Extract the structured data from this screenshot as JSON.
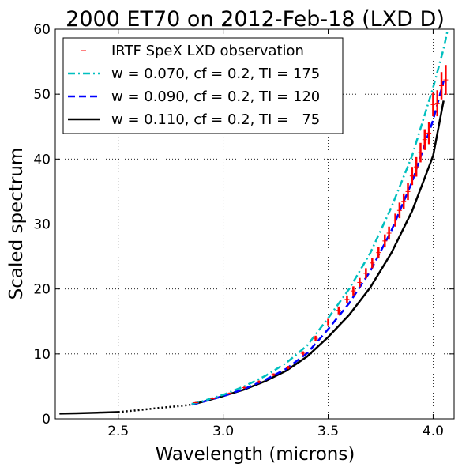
{
  "chart_data": {
    "type": "line",
    "title": "2000 ET70 on 2012-Feb-18 (LXD D)",
    "xlabel": "Wavelength (microns)",
    "ylabel": "Scaled spectrum",
    "xlim": [
      2.2,
      4.1
    ],
    "ylim": [
      0,
      60
    ],
    "xticks": [
      2.5,
      3.0,
      3.5,
      4.0
    ],
    "xtick_labels": [
      "2.5",
      "3.0",
      "3.5",
      "4.0"
    ],
    "yticks": [
      0,
      10,
      20,
      30,
      40,
      50,
      60
    ],
    "ytick_labels": [
      "0",
      "10",
      "20",
      "30",
      "40",
      "50",
      "60"
    ],
    "grid": true,
    "legend_position": "top-left",
    "observation": {
      "name": "IRTF SpeX LXD observation",
      "color": "#ff0000",
      "x": [
        2.87,
        2.95,
        3.03,
        3.1,
        3.17,
        3.24,
        3.31,
        3.38,
        3.44,
        3.5,
        3.55,
        3.59,
        3.62,
        3.65,
        3.68,
        3.71,
        3.74,
        3.77,
        3.79,
        3.82,
        3.84,
        3.86,
        3.88,
        3.9,
        3.92,
        3.94,
        3.96,
        3.98,
        4.0,
        4.02,
        4.04,
        4.06
      ],
      "y": [
        2.5,
        3.1,
        3.9,
        4.8,
        5.7,
        6.8,
        7.9,
        10.1,
        12.4,
        14.9,
        16.7,
        18.4,
        19.7,
        21.0,
        22.4,
        24.0,
        25.6,
        27.4,
        28.6,
        30.6,
        32.1,
        33.5,
        35.0,
        37.4,
        38.8,
        41.0,
        43.0,
        44.0,
        48.4,
        48.6,
        51.3,
        52.2
      ],
      "err": [
        0.1,
        0.1,
        0.15,
        0.15,
        0.2,
        0.2,
        0.25,
        0.3,
        0.4,
        0.5,
        0.6,
        0.6,
        0.7,
        0.7,
        0.8,
        0.8,
        0.9,
        1.0,
        1.0,
        1.0,
        1.2,
        1.2,
        1.3,
        1.4,
        1.5,
        1.5,
        1.6,
        1.7,
        1.8,
        2.0,
        2.1,
        2.3
      ]
    },
    "series": [
      {
        "name": "w = 0.070, cf = 0.2, TI = 175",
        "color": "#00bfbf",
        "style": "dashdot",
        "x": [
          2.85,
          2.9,
          3.0,
          3.1,
          3.2,
          3.3,
          3.4,
          3.5,
          3.6,
          3.7,
          3.8,
          3.9,
          4.0,
          4.05,
          4.07
        ],
        "y": [
          2.3,
          2.7,
          3.7,
          5.0,
          6.6,
          8.6,
          11.3,
          15.5,
          20.0,
          25.5,
          32.5,
          40.5,
          51.0,
          57.0,
          60.0
        ]
      },
      {
        "name": "w = 0.090, cf = 0.2, TI = 120",
        "color": "#0000ff",
        "style": "dashed",
        "x": [
          2.85,
          2.9,
          3.0,
          3.1,
          3.2,
          3.3,
          3.4,
          3.5,
          3.6,
          3.7,
          3.8,
          3.9,
          4.0,
          4.05
        ],
        "y": [
          2.2,
          2.6,
          3.5,
          4.6,
          6.0,
          7.7,
          10.1,
          13.8,
          17.8,
          22.7,
          28.9,
          36.5,
          46.0,
          52.0
        ]
      },
      {
        "name": "w = 0.110, cf = 0.2, TI =   75",
        "color": "#000000",
        "style": "solid",
        "x": [
          2.85,
          2.9,
          3.0,
          3.1,
          3.2,
          3.3,
          3.4,
          3.5,
          3.6,
          3.7,
          3.8,
          3.9,
          4.0,
          4.05
        ],
        "y": [
          2.2,
          2.6,
          3.5,
          4.5,
          5.8,
          7.4,
          9.6,
          12.6,
          16.0,
          20.2,
          25.5,
          32.0,
          40.5,
          49.0
        ]
      }
    ],
    "extrapolation": {
      "color": "#000000",
      "solid_x": [
        2.22,
        2.3,
        2.4,
        2.5
      ],
      "solid_y": [
        0.8,
        0.85,
        0.95,
        1.05
      ],
      "dotted_x": [
        2.5,
        2.6,
        2.7,
        2.8,
        2.85
      ],
      "dotted_y": [
        1.05,
        1.35,
        1.7,
        2.0,
        2.2
      ]
    }
  }
}
